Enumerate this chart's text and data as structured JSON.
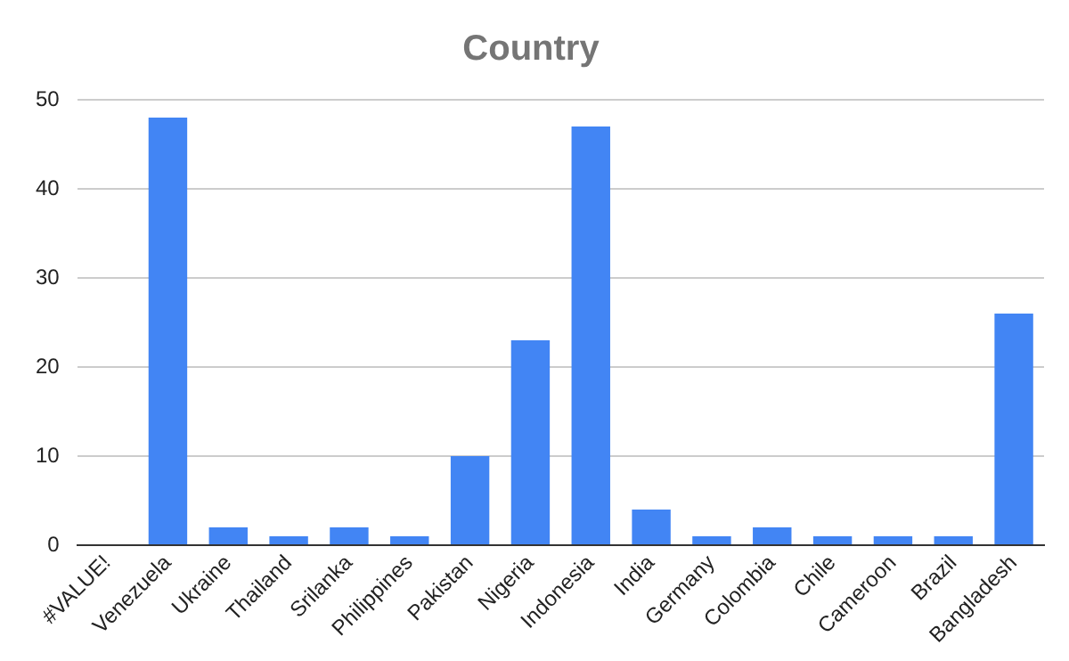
{
  "chart_data": {
    "type": "bar",
    "title": "Country",
    "categories": [
      "#VALUE!",
      "Venezuela",
      "Ukraine",
      "Thailand",
      "Srilanka",
      "Philippines",
      "Pakistan",
      "Nigeria",
      "Indonesia",
      "India",
      "Germany",
      "Colombia",
      "Chile",
      "Cameroon",
      "Brazil",
      "Bangladesh"
    ],
    "values": [
      0,
      48,
      2,
      1,
      2,
      1,
      10,
      23,
      47,
      4,
      1,
      2,
      1,
      1,
      1,
      26
    ],
    "color": "#4285f4",
    "ylim": [
      0,
      50
    ],
    "yticks": [
      0,
      10,
      20,
      30,
      40,
      50
    ],
    "grid": "y",
    "legend": false
  }
}
